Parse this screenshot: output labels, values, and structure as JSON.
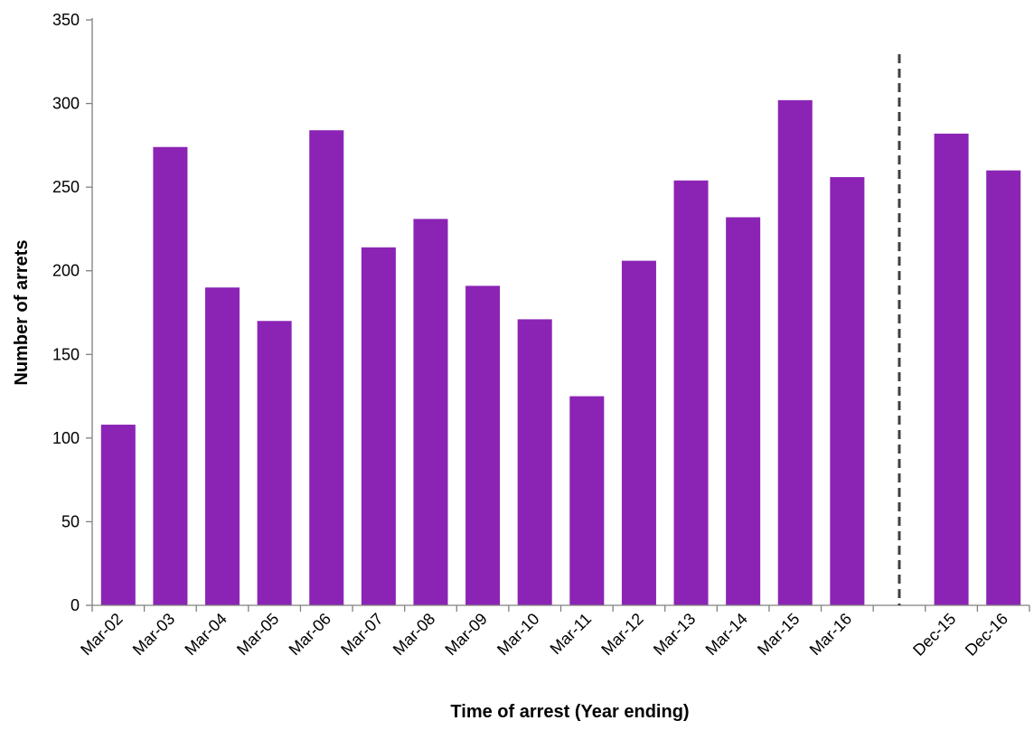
{
  "chart_data": {
    "type": "bar",
    "categories": [
      "Mar-02",
      "Mar-03",
      "Mar-04",
      "Mar-05",
      "Mar-06",
      "Mar-07",
      "Mar-08",
      "Mar-09",
      "Mar-10",
      "Mar-11",
      "Mar-12",
      "Mar-13",
      "Mar-14",
      "Mar-15",
      "Mar-16",
      "",
      "Dec-15",
      "Dec-16"
    ],
    "values": [
      108,
      274,
      190,
      170,
      284,
      214,
      231,
      191,
      171,
      125,
      206,
      254,
      232,
      302,
      256,
      null,
      282,
      260
    ],
    "xlabel": "Time of arrest (Year ending)",
    "ylabel": "Number of arrets",
    "ylim": [
      0,
      350
    ],
    "yticks": [
      0,
      50,
      100,
      150,
      200,
      250,
      300,
      350
    ],
    "grid": false,
    "legend": "none",
    "divider_after_category": "Mar-16",
    "colors": {
      "bar": "#8B24B4",
      "axis": "#808080",
      "divider": "#404040"
    }
  }
}
